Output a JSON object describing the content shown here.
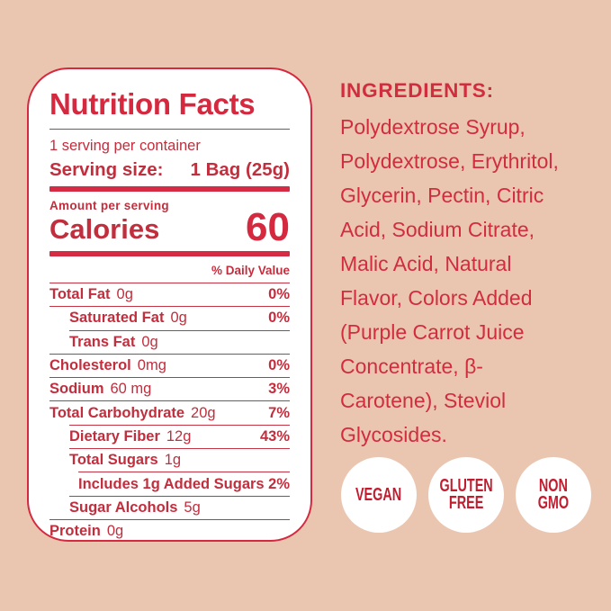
{
  "palette": {
    "background": "#EAC6B1",
    "panel_background": "#FFFFFF",
    "red_primary": "#D4293F",
    "red_body_text": "#C12E3D",
    "badge_text_red": "#C01E30"
  },
  "label": {
    "title": "Nutrition Facts",
    "servings_per_container": "1 serving per container",
    "serving_size_label": "Serving size:",
    "serving_size_value": "1 Bag (25g)",
    "amount_per_serving": "Amount per serving",
    "calories_label": "Calories",
    "calories_value": "60",
    "daily_value_header": "% Daily Value",
    "rows": [
      {
        "label": "Total Fat",
        "value": "0g",
        "pct": "0%",
        "indent": 0,
        "divider_indent": 0
      },
      {
        "label": "Saturated Fat",
        "value": "0g",
        "pct": "0%",
        "indent": 1,
        "divider_indent": 0
      },
      {
        "label": "Trans Fat",
        "value": "0g",
        "pct": "",
        "indent": 1,
        "divider_indent": 1
      },
      {
        "label": "Cholesterol",
        "value": "0mg",
        "pct": "0%",
        "indent": 0,
        "divider_indent": 0
      },
      {
        "label": "Sodium",
        "value": "60 mg",
        "pct": "3%",
        "indent": 0,
        "divider_indent": 0
      },
      {
        "label": "Total Carbohydrate",
        "value": "20g",
        "pct": "7%",
        "indent": 0,
        "divider_indent": 0
      },
      {
        "label": "Dietary Fiber",
        "value": "12g",
        "pct": "43%",
        "indent": 1,
        "divider_indent": 1
      },
      {
        "label": "Total Sugars",
        "value": "1g",
        "pct": "",
        "indent": 1,
        "divider_indent": 1
      },
      {
        "label": "Includes 1g Added Sugars",
        "value": "",
        "pct": "2%",
        "indent": 2,
        "divider_indent": 2
      },
      {
        "label": "Sugar Alcohols",
        "value": "5g",
        "pct": "",
        "indent": 1,
        "divider_indent": 1
      },
      {
        "label": "Protein",
        "value": "0g",
        "pct": "",
        "indent": 0,
        "divider_indent": 0
      }
    ]
  },
  "ingredients": {
    "heading": "INGREDIENTS:",
    "lines": [
      "Polydextrose Syrup,",
      "Polydextrose, Erythritol,",
      "Glycerin, Pectin, Citric",
      "Acid, Sodium Citrate,",
      "Malic Acid, Natural",
      "Flavor, Colors Added",
      "(Purple Carrot Juice",
      "Concentrate, β-",
      "Carotene), Steviol",
      "Glycosides."
    ]
  },
  "badges": [
    {
      "name": "vegan-badge",
      "lines": [
        "VEGAN"
      ]
    },
    {
      "name": "gluten-free-badge",
      "lines": [
        "GLUTEN",
        "FREE"
      ]
    },
    {
      "name": "non-gmo-badge",
      "lines": [
        "NON",
        "GMO"
      ]
    }
  ]
}
